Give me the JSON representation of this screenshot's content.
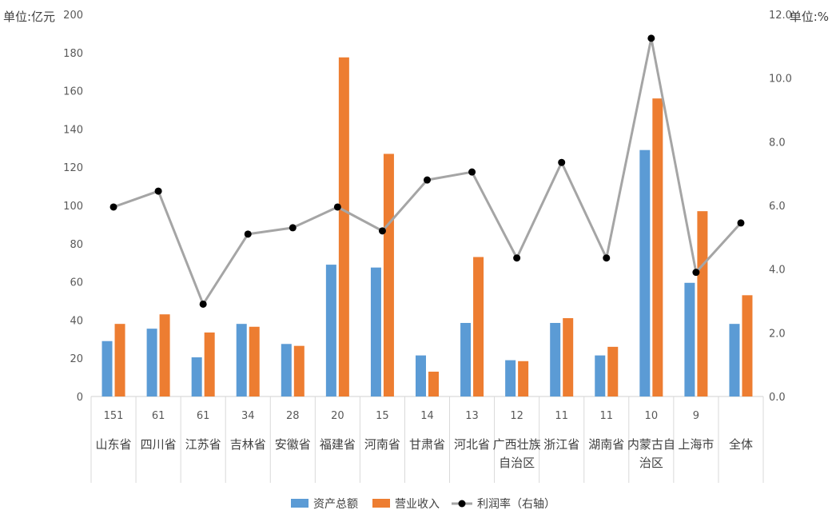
{
  "chart_data": {
    "type": "bar",
    "y_left_unit": "单位:亿元",
    "y_right_unit": "单位:%",
    "y_left_ticks": [
      "0",
      "20",
      "40",
      "60",
      "80",
      "100",
      "120",
      "140",
      "160",
      "180",
      "200"
    ],
    "y_right_ticks": [
      "0.0",
      "2.0",
      "4.0",
      "6.0",
      "8.0",
      "10.0",
      "12.0"
    ],
    "y_left_lim": [
      0,
      200
    ],
    "y_right_lim": [
      0,
      12
    ],
    "categories": [
      {
        "count": "151",
        "name_lines": [
          "山东省"
        ]
      },
      {
        "count": "61",
        "name_lines": [
          "四川省"
        ]
      },
      {
        "count": "61",
        "name_lines": [
          "江苏省"
        ]
      },
      {
        "count": "34",
        "name_lines": [
          "吉林省"
        ]
      },
      {
        "count": "28",
        "name_lines": [
          "安徽省"
        ]
      },
      {
        "count": "20",
        "name_lines": [
          "福建省"
        ]
      },
      {
        "count": "15",
        "name_lines": [
          "河南省"
        ]
      },
      {
        "count": "14",
        "name_lines": [
          "甘肃省"
        ]
      },
      {
        "count": "13",
        "name_lines": [
          "河北省"
        ]
      },
      {
        "count": "12",
        "name_lines": [
          "广西壮族",
          "自治区"
        ]
      },
      {
        "count": "11",
        "name_lines": [
          "浙江省"
        ]
      },
      {
        "count": "11",
        "name_lines": [
          "湖南省"
        ]
      },
      {
        "count": "10",
        "name_lines": [
          "内蒙古自",
          "治区"
        ]
      },
      {
        "count": "9",
        "name_lines": [
          "上海市"
        ]
      },
      {
        "count": "",
        "name_lines": [
          "全体"
        ]
      }
    ],
    "series": [
      {
        "name": "资产总额",
        "type": "bar",
        "axis": "left",
        "color": "#5B9BD5",
        "values": [
          29,
          35.5,
          20.5,
          38,
          27.5,
          69,
          67.5,
          21.5,
          38.5,
          19,
          38.5,
          21.5,
          129,
          59.5,
          38
        ]
      },
      {
        "name": "营业收入",
        "type": "bar",
        "axis": "left",
        "color": "#ED7D31",
        "values": [
          38,
          43,
          33.5,
          36.5,
          26.5,
          177.5,
          127,
          13,
          73,
          18.5,
          41,
          26,
          156,
          97,
          53
        ]
      },
      {
        "name": "利润率（右轴）",
        "type": "line",
        "axis": "right",
        "color": "#A5A5A5",
        "marker_color": "#000000",
        "values": [
          5.95,
          6.45,
          2.9,
          5.1,
          5.3,
          5.95,
          5.2,
          6.8,
          7.05,
          4.35,
          7.35,
          4.35,
          11.25,
          3.9,
          5.45
        ]
      }
    ],
    "grid": false,
    "legend_position": "bottom"
  }
}
